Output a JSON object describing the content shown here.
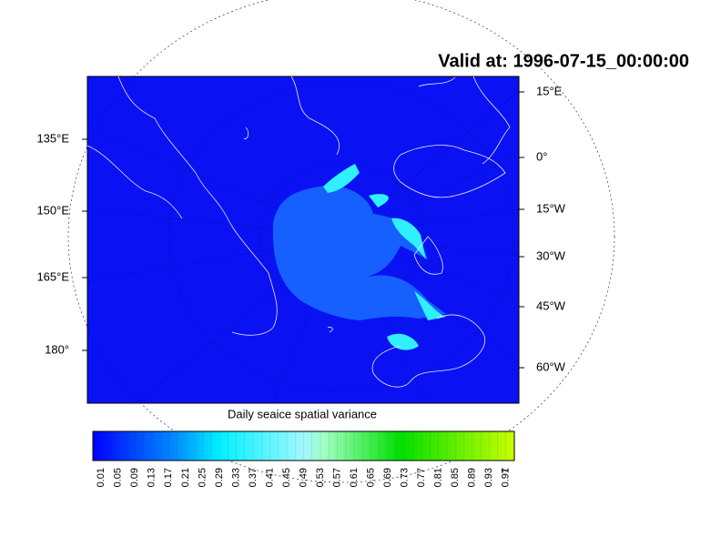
{
  "title": "Valid at: 1996-07-15_00:00:00",
  "map": {
    "left_labels": [
      "135°E",
      "150°E",
      "165°E",
      "180°"
    ],
    "right_labels": [
      "15°E",
      "0°",
      "15°W",
      "30°W",
      "45°W",
      "60°W"
    ]
  },
  "colorbar": {
    "title": "Daily seaice spatial variance",
    "labels": [
      "0.01",
      "0.05",
      "0.09",
      "0.13",
      "0.17",
      "0.21",
      "0.25",
      "0.29",
      "0.33",
      "0.37",
      "0.41",
      "0.45",
      "0.49",
      "0.53",
      "0.57",
      "0.61",
      "0.65",
      "0.69",
      "0.73",
      "0.77",
      "0.81",
      "0.85",
      "0.89",
      "0.93",
      "0.97",
      "1"
    ]
  }
}
